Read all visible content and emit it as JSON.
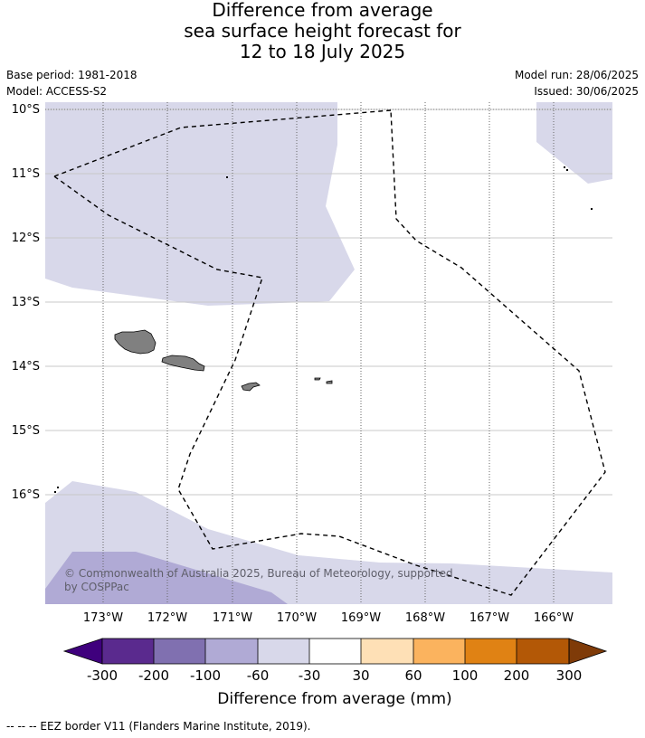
{
  "title_lines": [
    "Difference from average",
    "sea surface height forecast for",
    "12 to 18 July 2025"
  ],
  "base_period": "Base period: 1981-2018",
  "model": "Model: ACCESS-S2",
  "model_run": "Model run: 28/06/2025",
  "issued": "Issued: 30/06/2025",
  "lat_labels": [
    "10°S",
    "11°S",
    "12°S",
    "13°S",
    "14°S",
    "15°S",
    "16°S"
  ],
  "lon_labels": [
    "173°W",
    "172°W",
    "171°W",
    "170°W",
    "169°W",
    "168°W",
    "167°W",
    "166°W"
  ],
  "copyright": [
    "© Commonwealth of Australia 2025, Bureau of Meteorology, supported",
    "by COSPPac"
  ],
  "colorbar": {
    "ticks": [
      "-300",
      "-200",
      "-100",
      "-60",
      "-30",
      "30",
      "60",
      "100",
      "200",
      "300"
    ],
    "colors": [
      "#3f007d",
      "#5a2a8e",
      "#8070b0",
      "#b0aad5",
      "#d8d8ea",
      "#ffffff",
      "#fee0b6",
      "#fbb35e",
      "#e08214",
      "#b35806",
      "#7f3b08"
    ],
    "label": "Difference from average (mm)"
  },
  "legend_footer": "--  --  -- EEZ border V11 (Flanders Marine Institute, 2019)."
}
